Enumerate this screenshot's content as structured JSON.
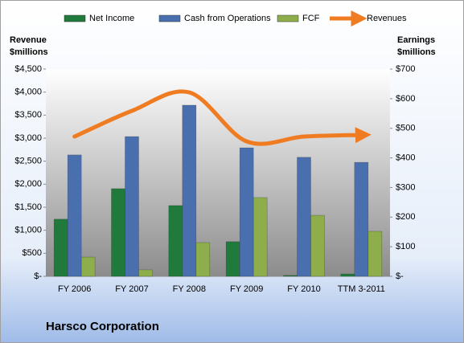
{
  "chart_data": {
    "type": "bar-line",
    "title": "Harsco Corporation",
    "y_axis_title": "Revenue $millions",
    "y2_axis_title": "Earnings $millions",
    "categories": [
      "FY 2006",
      "FY 2007",
      "FY 2008",
      "FY 2009",
      "FY 2010",
      "TTM 3-2011"
    ],
    "series": [
      {
        "name": "Net Income",
        "type": "bar",
        "axis": "y2",
        "color": "#1f7a3c",
        "values": [
          193,
          296,
          239,
          117,
          3,
          8
        ]
      },
      {
        "name": "Cash from Operations",
        "type": "bar",
        "axis": "y2",
        "color": "#4a6fae",
        "values": [
          410,
          472,
          578,
          434,
          402,
          385
        ]
      },
      {
        "name": "FCF",
        "type": "bar",
        "axis": "y2",
        "color": "#8dae4a",
        "values": [
          65,
          22,
          114,
          266,
          206,
          152
        ]
      },
      {
        "name": "Revenues",
        "type": "line",
        "axis": "y",
        "color": "#f07c22",
        "values": [
          3035,
          3593,
          3994,
          2930,
          3035,
          3070
        ]
      }
    ],
    "ylim": [
      0,
      4500
    ],
    "yticks": [
      {
        "value": 0,
        "label": "$-"
      },
      {
        "value": 500,
        "label": "$500"
      },
      {
        "value": 1000,
        "label": "$1,000"
      },
      {
        "value": 1500,
        "label": "$1,500"
      },
      {
        "value": 2000,
        "label": "$2,000"
      },
      {
        "value": 2500,
        "label": "$2,500"
      },
      {
        "value": 3000,
        "label": "$3,000"
      },
      {
        "value": 3500,
        "label": "$3,500"
      },
      {
        "value": 4000,
        "label": "$4,000"
      },
      {
        "value": 4500,
        "label": "$4,500"
      }
    ],
    "y2lim": [
      0,
      700
    ],
    "y2ticks": [
      {
        "value": 0,
        "label": "$-"
      },
      {
        "value": 100,
        "label": "$100"
      },
      {
        "value": 200,
        "label": "$200"
      },
      {
        "value": 300,
        "label": "$300"
      },
      {
        "value": 400,
        "label": "$400"
      },
      {
        "value": 500,
        "label": "$500"
      },
      {
        "value": 600,
        "label": "$600"
      },
      {
        "value": 700,
        "label": "$700"
      }
    ],
    "legend": "top"
  }
}
